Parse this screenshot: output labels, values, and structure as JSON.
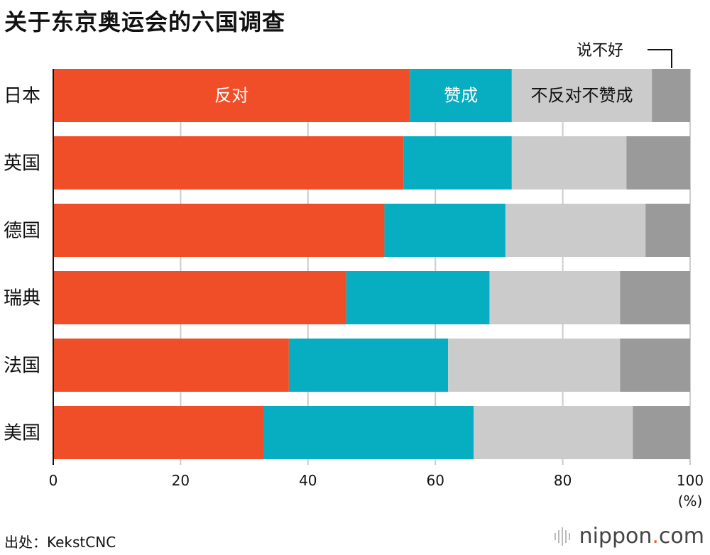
{
  "title": "关于东京奥运会的六国调查",
  "source": "出处：KekstCNC",
  "logo": {
    "main": "nippon",
    "dot": ".",
    "suffix": "com"
  },
  "colors": {
    "oppose": "#f04e28",
    "support": "#07adc1",
    "neutral": "#cbcbcb",
    "unknown": "#9a9a9a",
    "grid": "#cccccc"
  },
  "chart_data": {
    "type": "bar",
    "orientation": "horizontal",
    "stacked": true,
    "categories": [
      "日本",
      "英国",
      "德国",
      "瑞典",
      "法国",
      "美国"
    ],
    "series": [
      {
        "name": "反对",
        "values": [
          56,
          55,
          52,
          46,
          37,
          33
        ]
      },
      {
        "name": "赞成",
        "values": [
          16,
          17,
          19,
          22.5,
          25,
          33
        ]
      },
      {
        "name": "不反对不赞成",
        "values": [
          22,
          18,
          22,
          20.5,
          27,
          25
        ]
      },
      {
        "name": "说不好",
        "values": [
          6,
          10,
          7,
          11,
          11,
          9
        ]
      }
    ],
    "xticks": [
      "0",
      "20",
      "40",
      "60",
      "80",
      "100"
    ],
    "xunit": "(%)",
    "xlim": [
      0,
      100
    ],
    "grid": true
  }
}
